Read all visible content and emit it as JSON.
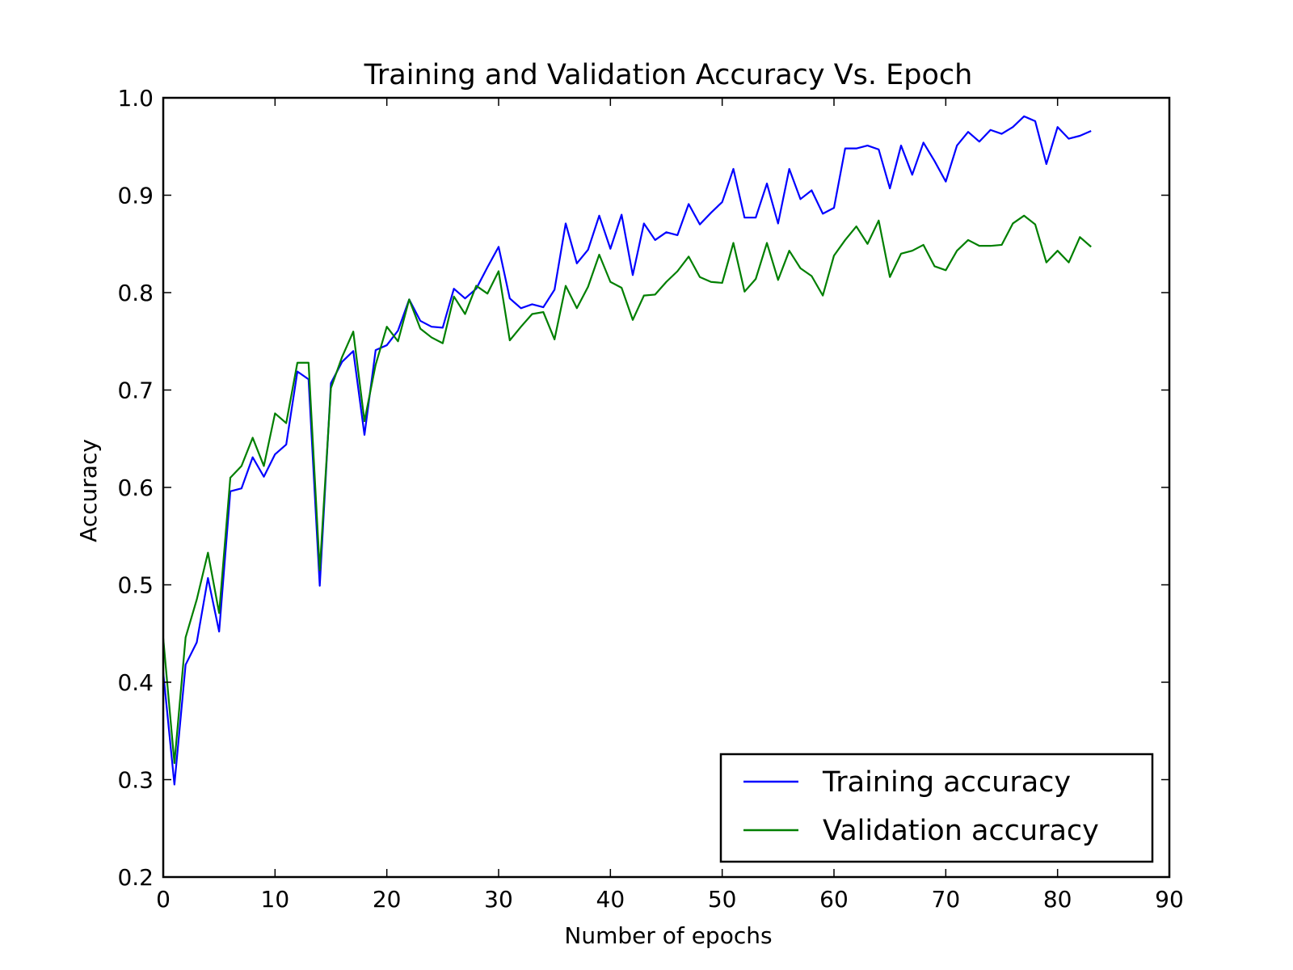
{
  "chart_data": {
    "type": "line",
    "title": "Training and Validation Accuracy Vs. Epoch",
    "xlabel": "Number of epochs",
    "ylabel": "Accuracy",
    "xlim": [
      0,
      90
    ],
    "ylim": [
      0.2,
      1.0
    ],
    "xticks": [
      0,
      10,
      20,
      30,
      40,
      50,
      60,
      70,
      80,
      90
    ],
    "yticks": [
      0.2,
      0.3,
      0.4,
      0.5,
      0.6,
      0.7,
      0.8,
      0.9,
      1.0
    ],
    "xtick_labels": [
      "0",
      "10",
      "20",
      "30",
      "40",
      "50",
      "60",
      "70",
      "80",
      "90"
    ],
    "ytick_labels": [
      "0.2",
      "0.3",
      "0.4",
      "0.5",
      "0.6",
      "0.7",
      "0.8",
      "0.9",
      "1.0"
    ],
    "grid": false,
    "legend_position": "lower-right",
    "x": [
      0,
      1,
      2,
      3,
      4,
      5,
      6,
      7,
      8,
      9,
      10,
      11,
      12,
      13,
      14,
      15,
      16,
      17,
      18,
      19,
      20,
      21,
      22,
      23,
      24,
      25,
      26,
      27,
      28,
      29,
      30,
      31,
      32,
      33,
      34,
      35,
      36,
      37,
      38,
      39,
      40,
      41,
      42,
      43,
      44,
      45,
      46,
      47,
      48,
      49,
      50,
      51,
      52,
      53,
      54,
      55,
      56,
      57,
      58,
      59,
      60,
      61,
      62,
      63,
      64,
      65,
      66,
      67,
      68,
      69,
      70,
      71,
      72,
      73,
      74,
      75,
      76,
      77,
      78,
      79,
      80,
      81,
      82,
      83
    ],
    "series": [
      {
        "name": "Training accuracy",
        "color": "#0000ff",
        "values": [
          0.41,
          0.295,
          0.418,
          0.441,
          0.507,
          0.452,
          0.596,
          0.599,
          0.631,
          0.611,
          0.634,
          0.644,
          0.719,
          0.711,
          0.499,
          0.707,
          0.729,
          0.74,
          0.654,
          0.741,
          0.746,
          0.761,
          0.793,
          0.771,
          0.765,
          0.764,
          0.804,
          0.794,
          0.804,
          0.826,
          0.847,
          0.794,
          0.784,
          0.788,
          0.785,
          0.803,
          0.871,
          0.83,
          0.844,
          0.879,
          0.845,
          0.88,
          0.818,
          0.871,
          0.854,
          0.862,
          0.859,
          0.891,
          0.87,
          0.882,
          0.893,
          0.927,
          0.877,
          0.877,
          0.912,
          0.871,
          0.927,
          0.896,
          0.905,
          0.881,
          0.887,
          0.948,
          0.948,
          0.951,
          0.947,
          0.907,
          0.951,
          0.921,
          0.954,
          0.935,
          0.914,
          0.951,
          0.965,
          0.955,
          0.967,
          0.963,
          0.97,
          0.981,
          0.976,
          0.932,
          0.97,
          0.958,
          0.961,
          0.966
        ]
      },
      {
        "name": "Validation accuracy",
        "color": "#007f00",
        "values": [
          0.445,
          0.317,
          0.446,
          0.485,
          0.533,
          0.471,
          0.61,
          0.622,
          0.651,
          0.622,
          0.676,
          0.666,
          0.728,
          0.728,
          0.515,
          0.702,
          0.734,
          0.76,
          0.668,
          0.726,
          0.765,
          0.75,
          0.793,
          0.763,
          0.754,
          0.748,
          0.796,
          0.778,
          0.807,
          0.799,
          0.822,
          0.751,
          0.765,
          0.778,
          0.78,
          0.752,
          0.807,
          0.784,
          0.806,
          0.839,
          0.811,
          0.805,
          0.772,
          0.797,
          0.798,
          0.811,
          0.822,
          0.837,
          0.816,
          0.811,
          0.81,
          0.851,
          0.801,
          0.814,
          0.851,
          0.813,
          0.843,
          0.825,
          0.817,
          0.797,
          0.838,
          0.854,
          0.868,
          0.85,
          0.874,
          0.816,
          0.84,
          0.843,
          0.849,
          0.827,
          0.823,
          0.843,
          0.854,
          0.848,
          0.848,
          0.849,
          0.871,
          0.879,
          0.87,
          0.831,
          0.843,
          0.831,
          0.857,
          0.847
        ]
      }
    ]
  }
}
